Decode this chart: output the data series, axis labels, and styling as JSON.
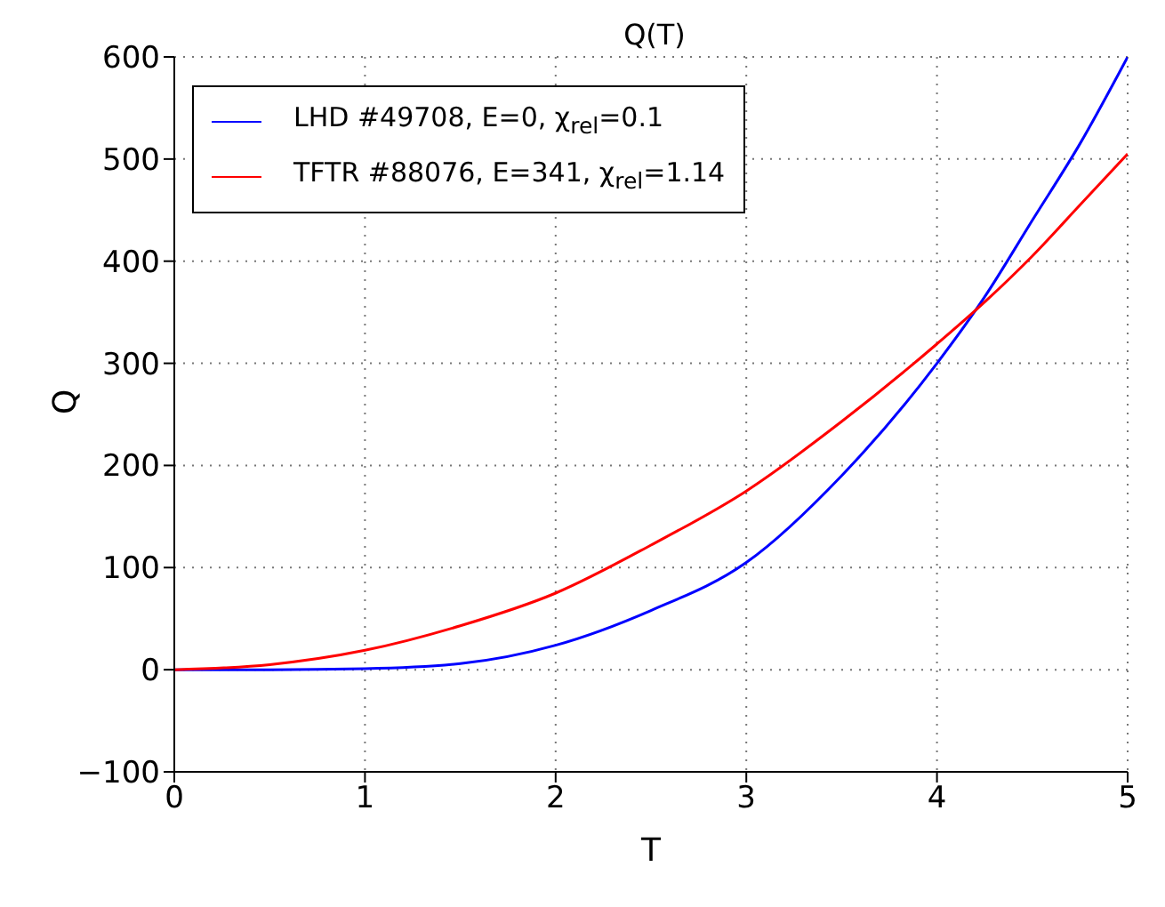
{
  "chart_data": {
    "type": "line",
    "title": "Q(T)",
    "xlabel": "T",
    "ylabel": "Q",
    "xlim": [
      0,
      5
    ],
    "xticks": [
      0,
      1,
      2,
      3,
      4,
      5
    ],
    "ylim": [
      -100,
      600
    ],
    "yticks": [
      -100,
      0,
      100,
      200,
      300,
      400,
      500,
      600
    ],
    "grid": true,
    "legend": "top left",
    "marker": "none",
    "line_style": "solid",
    "x": [
      0,
      0.5,
      1,
      1.5,
      2,
      2.5,
      3,
      3.5,
      4,
      4.25,
      4.5,
      4.75,
      5
    ],
    "series": [
      {
        "name": "LHD #49708, E=0, χ$_{rel}$=0.1",
        "color": "#0000ff",
        "values": [
          0,
          0,
          1,
          6,
          24,
          58,
          105,
          190,
          300,
          365,
          440,
          515,
          600
        ]
      },
      {
        "name": "TFTR #88076, E=341, χ$_{rel}$=1.14",
        "color": "#ff0000",
        "values": [
          0,
          5,
          19,
          43,
          75,
          122,
          175,
          243,
          319,
          360,
          405,
          455,
          505
        ]
      }
    ]
  }
}
